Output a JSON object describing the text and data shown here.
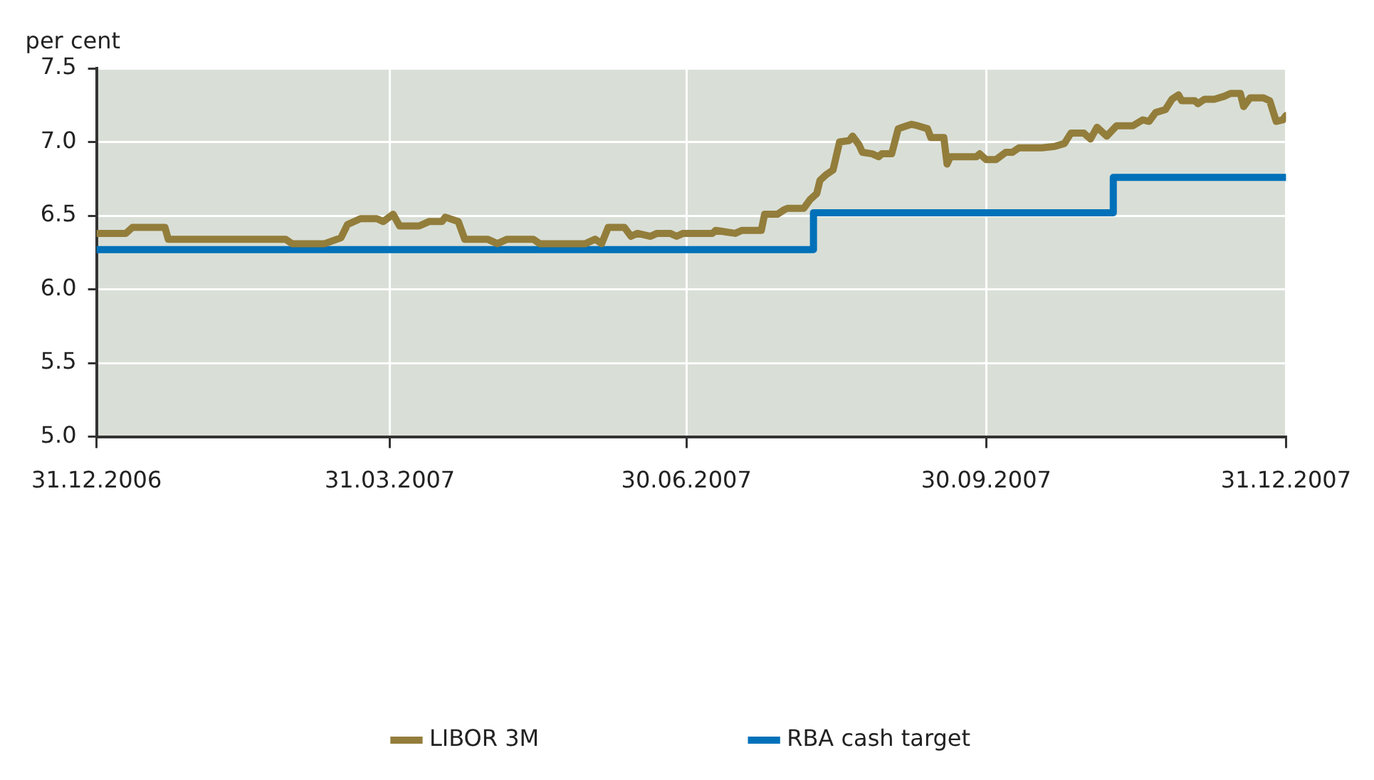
{
  "chart_data": {
    "type": "line",
    "ylabel": "per cent",
    "ylim": [
      5.0,
      7.5
    ],
    "yticks": [
      {
        "value": 5.0,
        "label": "5.0"
      },
      {
        "value": 5.5,
        "label": "5.5"
      },
      {
        "value": 6.0,
        "label": "6.0"
      },
      {
        "value": 6.5,
        "label": "6.5"
      },
      {
        "value": 7.0,
        "label": "7.0"
      },
      {
        "value": 7.5,
        "label": "7.5"
      }
    ],
    "xlim": [
      "2006-12-31",
      "2007-12-31"
    ],
    "xticks": [
      {
        "value": "2006-12-31",
        "label": "31.12.2006"
      },
      {
        "value": "2007-03-31",
        "label": "31.03.2007"
      },
      {
        "value": "2007-06-30",
        "label": "30.06.2007"
      },
      {
        "value": "2007-09-30",
        "label": "30.09.2007"
      },
      {
        "value": "2007-12-31",
        "label": "31.12.2007"
      }
    ],
    "grid": true,
    "legend": "bottom",
    "marker": "none",
    "line_style": "solid",
    "series": [
      {
        "name": "LIBOR 3M",
        "color": "#937d3b",
        "x": [
          "2006-12-31",
          "2007-01-09",
          "2007-01-11",
          "2007-01-21",
          "2007-01-22",
          "2007-02-27",
          "2007-03-01",
          "2007-03-11",
          "2007-03-16",
          "2007-03-18",
          "2007-03-22",
          "2007-03-27",
          "2007-03-29",
          "2007-04-01",
          "2007-04-03",
          "2007-04-09",
          "2007-04-12",
          "2007-04-16",
          "2007-04-17",
          "2007-04-21",
          "2007-04-23",
          "2007-04-30",
          "2007-05-03",
          "2007-05-06",
          "2007-05-14",
          "2007-05-16",
          "2007-05-30",
          "2007-06-02",
          "2007-06-04",
          "2007-06-06",
          "2007-06-11",
          "2007-06-13",
          "2007-06-15",
          "2007-06-19",
          "2007-06-21",
          "2007-06-25",
          "2007-06-27",
          "2007-06-29",
          "2007-07-08",
          "2007-07-09",
          "2007-07-15",
          "2007-07-17",
          "2007-07-23",
          "2007-07-24",
          "2007-07-28",
          "2007-07-30",
          "2007-07-31",
          "2007-08-05",
          "2007-08-07",
          "2007-08-09",
          "2007-08-10",
          "2007-08-12",
          "2007-08-14",
          "2007-08-16",
          "2007-08-19",
          "2007-08-20",
          "2007-08-22",
          "2007-08-23",
          "2007-08-26",
          "2007-08-28",
          "2007-08-29",
          "2007-09-01",
          "2007-09-03",
          "2007-09-07",
          "2007-09-09",
          "2007-09-12",
          "2007-09-13",
          "2007-09-17",
          "2007-09-18",
          "2007-09-19",
          "2007-09-27",
          "2007-09-28",
          "2007-09-30",
          "2007-10-03",
          "2007-10-06",
          "2007-10-08",
          "2007-10-10",
          "2007-10-17",
          "2007-10-21",
          "2007-10-24",
          "2007-10-26",
          "2007-10-30",
          "2007-11-01",
          "2007-11-03",
          "2007-11-05",
          "2007-11-06",
          "2007-11-09",
          "2007-11-14",
          "2007-11-17",
          "2007-11-19",
          "2007-11-21",
          "2007-11-24",
          "2007-11-26",
          "2007-11-28",
          "2007-11-29",
          "2007-12-03",
          "2007-12-04",
          "2007-12-06",
          "2007-12-09",
          "2007-12-12",
          "2007-12-14",
          "2007-12-17",
          "2007-12-18",
          "2007-12-20",
          "2007-12-24",
          "2007-12-26",
          "2007-12-28",
          "2007-12-30",
          "2007-12-31"
        ],
        "values": [
          6.38,
          6.38,
          6.42,
          6.42,
          6.34,
          6.34,
          6.31,
          6.31,
          6.35,
          6.44,
          6.48,
          6.48,
          6.46,
          6.51,
          6.43,
          6.43,
          6.46,
          6.46,
          6.49,
          6.46,
          6.34,
          6.34,
          6.31,
          6.34,
          6.34,
          6.31,
          6.31,
          6.34,
          6.31,
          6.42,
          6.42,
          6.36,
          6.38,
          6.36,
          6.38,
          6.38,
          6.36,
          6.38,
          6.38,
          6.4,
          6.38,
          6.4,
          6.4,
          6.51,
          6.51,
          6.54,
          6.55,
          6.55,
          6.61,
          6.65,
          6.74,
          6.78,
          6.81,
          7.0,
          7.01,
          7.04,
          6.98,
          6.93,
          6.92,
          6.9,
          6.92,
          6.92,
          7.09,
          7.12,
          7.11,
          7.09,
          7.03,
          7.03,
          6.85,
          6.9,
          6.9,
          6.92,
          6.88,
          6.88,
          6.93,
          6.93,
          6.96,
          6.96,
          6.97,
          6.99,
          7.06,
          7.06,
          7.02,
          7.1,
          7.06,
          7.04,
          7.11,
          7.11,
          7.15,
          7.14,
          7.2,
          7.22,
          7.29,
          7.32,
          7.28,
          7.28,
          7.26,
          7.29,
          7.29,
          7.31,
          7.33,
          7.33,
          7.24,
          7.3,
          7.3,
          7.28,
          7.14,
          7.15,
          7.18
        ]
      },
      {
        "name": "RBA cash target",
        "type": "step",
        "color": "#0071b9",
        "x": [
          "2006-12-31",
          "2007-08-08",
          "2007-11-08",
          "2007-12-31"
        ],
        "values": [
          6.27,
          6.52,
          6.76,
          6.76
        ]
      }
    ]
  }
}
